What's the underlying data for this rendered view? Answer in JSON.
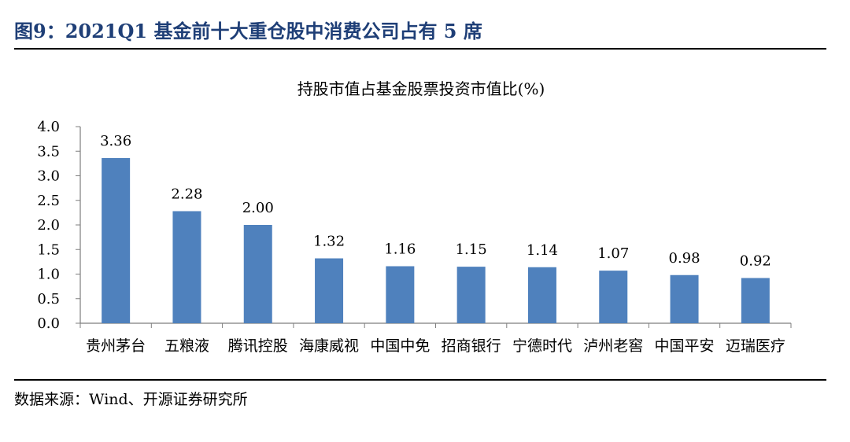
{
  "figure": {
    "title": "图9：2021Q1 基金前十大重仓股中消费公司占有 5 席",
    "source": "数据来源：Wind、开源证券研究所"
  },
  "colors": {
    "title": "#1F3F77",
    "bar": "#4F81BD"
  },
  "chart_data": {
    "type": "bar",
    "title": "持股市值占基金股票投资市值比(%)",
    "categories": [
      "贵州茅台",
      "五粮液",
      "腾讯控股",
      "海康威视",
      "中国中免",
      "招商银行",
      "宁德时代",
      "泸州老窖",
      "中国平安",
      "迈瑞医疗"
    ],
    "values": [
      3.36,
      2.28,
      2.0,
      1.32,
      1.16,
      1.15,
      1.14,
      1.07,
      0.98,
      0.92
    ],
    "value_labels": [
      "3.36",
      "2.28",
      "2.00",
      "1.32",
      "1.16",
      "1.15",
      "1.14",
      "1.07",
      "0.98",
      "0.92"
    ],
    "yticks": [
      "0.0",
      "0.5",
      "1.0",
      "1.5",
      "2.0",
      "2.5",
      "3.0",
      "3.5",
      "4.0"
    ],
    "ylim": [
      0,
      4
    ],
    "grid": false,
    "legend": "none"
  }
}
